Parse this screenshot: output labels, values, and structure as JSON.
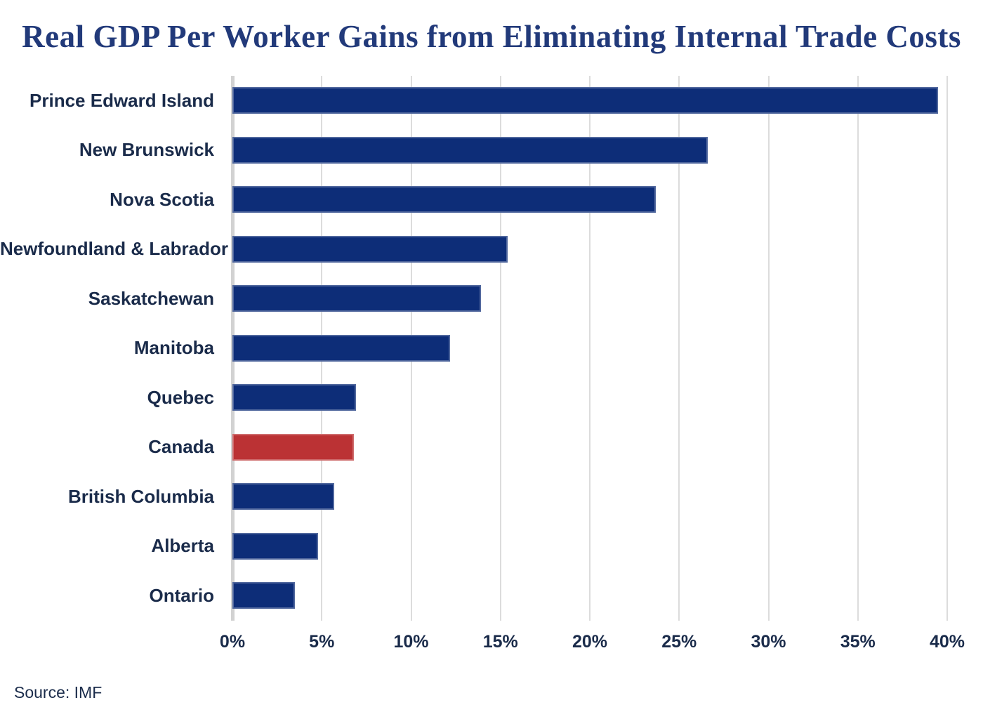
{
  "title": "Real GDP Per Worker Gains from Eliminating Internal Trade Costs",
  "source": "Source: IMF",
  "colors": {
    "bar": "#0d2d78",
    "highlight_bar": "#bb3234",
    "title_text": "#223a7a",
    "label_text": "#1a2b4a",
    "gridline": "#dcdcdc",
    "zero_axis": "#d2d2d2"
  },
  "chart_data": {
    "type": "bar",
    "orientation": "horizontal",
    "title": "Real GDP Per Worker Gains from Eliminating Internal Trade Costs",
    "xlabel": "",
    "ylabel": "",
    "xlim": [
      0,
      40
    ],
    "grid": true,
    "x_ticks": [
      "0%",
      "5%",
      "10%",
      "15%",
      "20%",
      "25%",
      "30%",
      "35%",
      "40%"
    ],
    "categories": [
      "Prince Edward Island",
      "New Brunswick",
      "Nova Scotia",
      "Newfoundland & Labrador",
      "Saskatchewan",
      "Manitoba",
      "Quebec",
      "Canada",
      "British Columbia",
      "Alberta",
      "Ontario"
    ],
    "values": [
      39.5,
      26.6,
      23.7,
      15.4,
      13.9,
      12.2,
      6.9,
      6.8,
      5.7,
      4.8,
      3.5
    ],
    "unit": "%",
    "highlight_category": "Canada"
  }
}
